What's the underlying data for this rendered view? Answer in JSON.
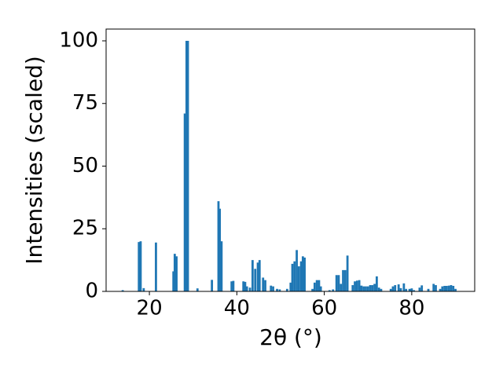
{
  "chart_data": {
    "type": "bar",
    "x_label": "2θ (°)",
    "y_label": "Intensities (scaled)",
    "color": "#1f77b4",
    "x": [
      13.9,
      17.6,
      18.0,
      18.7,
      21.5,
      25.5,
      25.8,
      26.2,
      28.1,
      28.5,
      28.8,
      31.0,
      34.3,
      35.8,
      36.1,
      36.5,
      38.8,
      39.2,
      41.5,
      41.9,
      42.3,
      43.0,
      43.6,
      44.2,
      44.8,
      45.2,
      46.0,
      46.5,
      47.8,
      48.3,
      49.2,
      49.8,
      51.5,
      52.3,
      52.7,
      53.2,
      53.7,
      54.2,
      54.7,
      55.1,
      55.5,
      57.3,
      57.8,
      58.3,
      58.8,
      59.2,
      61.2,
      62.0,
      62.8,
      63.3,
      63.8,
      64.3,
      64.8,
      65.3,
      66.5,
      67.0,
      67.5,
      68.0,
      68.5,
      69.0,
      69.5,
      70.0,
      70.5,
      71.0,
      71.5,
      72.0,
      72.5,
      73.0,
      75.2,
      75.7,
      76.2,
      77.0,
      77.5,
      78.2,
      78.7,
      79.5,
      80.0,
      80.5,
      81.8,
      82.3,
      83.8,
      85.0,
      85.5,
      86.5,
      87.0,
      87.5,
      88.0,
      88.5,
      89.0,
      89.5,
      90.0
    ],
    "values": [
      0.5,
      19.7,
      20,
      1.3,
      19.5,
      8,
      15,
      14,
      71,
      100,
      100,
      1.2,
      4.6,
      36,
      33,
      20,
      4,
      4.2,
      4,
      3.8,
      2,
      1.5,
      12.5,
      9,
      11.5,
      12.5,
      5.5,
      4.5,
      2.3,
      2,
      1,
      0.8,
      1,
      3.5,
      11,
      12,
      16.5,
      10,
      12,
      14,
      13.5,
      1,
      3.5,
      4.5,
      4.5,
      2,
      0.5,
      0.8,
      6.5,
      6.5,
      3,
      8.5,
      8.5,
      14.3,
      2.5,
      4,
      4.3,
      4.5,
      2.3,
      2,
      2,
      2,
      2.5,
      2.5,
      3,
      6,
      1.5,
      1,
      1,
      2,
      2.5,
      2.8,
      1.3,
      3.2,
      1,
      1,
      1.2,
      0.5,
      1.5,
      2.4,
      1,
      3,
      2.5,
      1,
      2,
      2.2,
      2.2,
      2.3,
      2.5,
      2.2,
      1
    ],
    "xlim": [
      10.1,
      94.4
    ],
    "ylim": [
      0,
      104.7
    ],
    "xticks": [
      20,
      40,
      60,
      80
    ],
    "yticks": [
      0,
      25,
      50,
      75,
      100
    ]
  }
}
